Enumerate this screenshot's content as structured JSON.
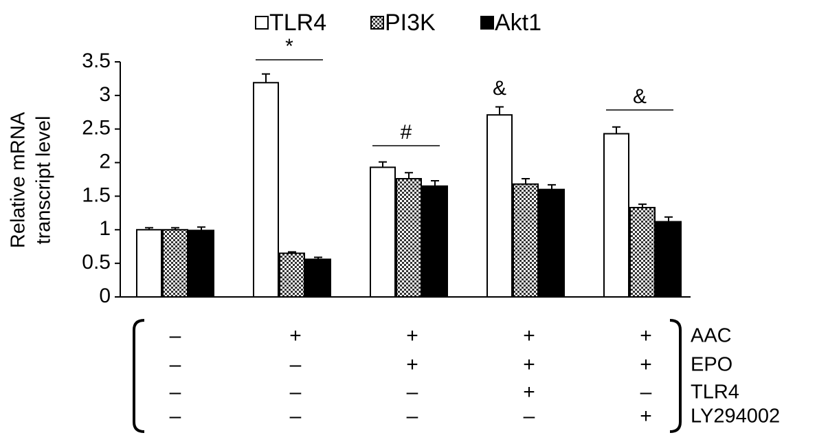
{
  "chart_data": {
    "type": "bar",
    "categories": [
      null,
      null,
      null,
      null,
      null
    ],
    "series": [
      {
        "name": "TLR4",
        "color": "#ffffff",
        "values": [
          1.0,
          3.19,
          1.93,
          2.71,
          2.43
        ],
        "errors": [
          0.03,
          0.13,
          0.08,
          0.12,
          0.1
        ]
      },
      {
        "name": "PI3K",
        "color": "#7a7a7a",
        "pattern": "checker",
        "values": [
          1.0,
          0.65,
          1.76,
          1.68,
          1.33
        ],
        "errors": [
          0.03,
          0.02,
          0.09,
          0.08,
          0.05
        ]
      },
      {
        "name": "Akt1",
        "color": "#000000",
        "values": [
          0.99,
          0.56,
          1.65,
          1.6,
          1.12
        ],
        "errors": [
          0.05,
          0.03,
          0.08,
          0.07,
          0.07
        ]
      }
    ],
    "y_label": [
      "Relative mRNA",
      "transcript level"
    ],
    "ylim": [
      0,
      3.5
    ],
    "yticks": [
      0,
      0.5,
      1,
      1.5,
      2,
      2.5,
      3,
      3.5
    ],
    "annotations": [
      "*",
      "#",
      "&",
      "&"
    ],
    "treatments": [
      {
        "name": "AAC",
        "signs": [
          "–",
          "+",
          "+",
          "+",
          "+"
        ]
      },
      {
        "name": "EPO",
        "signs": [
          "–",
          "–",
          "+",
          "+",
          "+"
        ]
      },
      {
        "name": "TLR4",
        "signs": [
          "–",
          "–",
          "–",
          "+",
          "–"
        ]
      },
      {
        "name": "LY294002",
        "signs": [
          "–",
          "–",
          "–",
          "–",
          "+"
        ]
      }
    ]
  }
}
